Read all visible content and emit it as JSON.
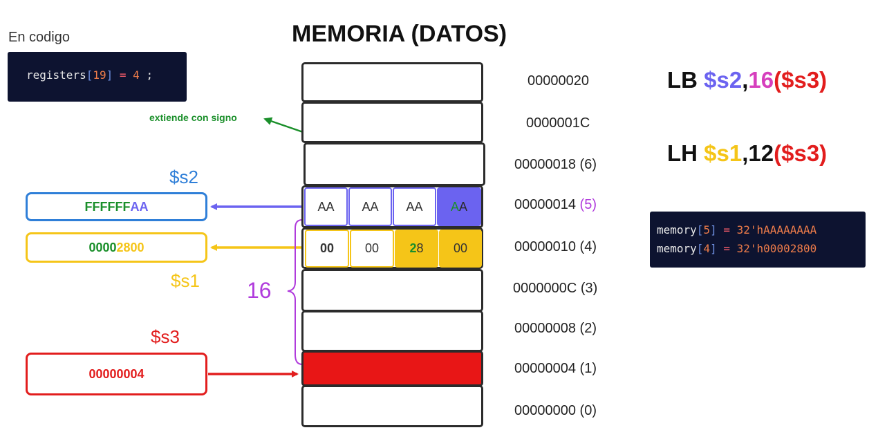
{
  "caption": "En codigo",
  "code_top": {
    "name": "registers",
    "index": "19",
    "value": "4",
    "end": ";"
  },
  "title": "MEMORIA (DATOS)",
  "addresses": [
    "00000020",
    "0000001C",
    "00000018 (6)",
    "00000014",
    "00000010 (4)",
    "0000000C (3)",
    "00000008 (2)",
    "00000004 (1)",
    "00000000 (0)"
  ],
  "addr5_index": "(5)",
  "mem5": {
    "bytes": [
      "AA",
      "AA",
      "AA"
    ],
    "last_a": "A",
    "last_b": "A"
  },
  "mem4": {
    "bytes": [
      "00",
      "00"
    ],
    "third_a": "2",
    "third_b": "8",
    "fourth": "00"
  },
  "registers": {
    "s2": {
      "label": "$s2",
      "value_green": "FFFFFF",
      "value_purple": "AA"
    },
    "s1": {
      "label": "$s1",
      "value_green": "0000",
      "value_yellow": "2800"
    },
    "s3": {
      "label": "$s3",
      "value": "00000004"
    }
  },
  "offset_label": "16",
  "sign_note": "extiende con signo",
  "instr_lb": {
    "op": "LB",
    "rt": "$s2",
    "comma": ",",
    "offset": "16",
    "base": "($s3)"
  },
  "instr_lh": {
    "op": "LH",
    "rt": "$s1",
    "comma": ",",
    "offset": "12",
    "base": "($s3)"
  },
  "code_bottom": [
    {
      "name": "memory",
      "index": "5",
      "value": "32'hAAAAAAAA"
    },
    {
      "name": "memory",
      "index": "4",
      "value": "32'h00002800"
    }
  ],
  "colors": {
    "purple": "#6b63f0",
    "yellow": "#f5c518",
    "red": "#e21d1d",
    "blue": "#2f7fd8",
    "green": "#1a8f2a",
    "magenta": "#d63fbd"
  }
}
